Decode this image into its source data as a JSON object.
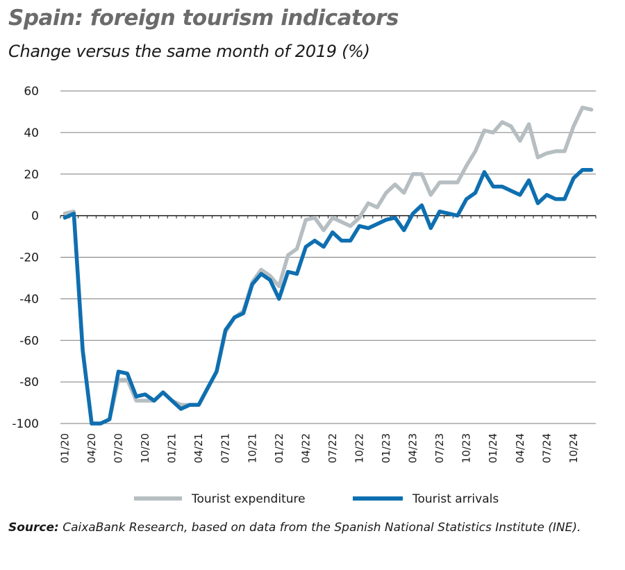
{
  "title": "Spain: foreign tourism indicators",
  "subtitle": "Change versus the same month of 2019 (%)",
  "source_label": "Source:",
  "source_text": "CaixaBank Research, based on data from the Spanish National Statistics Institute (INE).",
  "colors": {
    "expenditure": "#b6bec2",
    "arrivals": "#0e6fb0",
    "grid": "#7a7a7a",
    "zero_line": "#1a1a1a"
  },
  "chart_data": {
    "type": "line",
    "title": "Spain: foreign tourism indicators",
    "subtitle": "Change versus the same month of 2019 (%)",
    "xlabel": "",
    "ylabel": "",
    "ylim": [
      -100,
      60
    ],
    "yticks": [
      60,
      40,
      20,
      0,
      -20,
      -40,
      -60,
      -80,
      -100
    ],
    "xtick_labels": [
      "01/20",
      "04/20",
      "07/20",
      "10/20",
      "01/21",
      "04/21",
      "07/21",
      "10/21",
      "01/22",
      "04/22",
      "07/22",
      "10/22",
      "01/23",
      "04/23",
      "07/23",
      "10/23",
      "01/24",
      "04/24",
      "07/24",
      "10/24"
    ],
    "x": [
      "01/20",
      "02/20",
      "03/20",
      "04/20",
      "05/20",
      "06/20",
      "07/20",
      "08/20",
      "09/20",
      "10/20",
      "11/20",
      "12/20",
      "01/21",
      "02/21",
      "03/21",
      "04/21",
      "05/21",
      "06/21",
      "07/21",
      "08/21",
      "09/21",
      "10/21",
      "11/21",
      "12/21",
      "01/22",
      "02/22",
      "03/22",
      "04/22",
      "05/22",
      "06/22",
      "07/22",
      "08/22",
      "09/22",
      "10/22",
      "11/22",
      "12/22",
      "01/23",
      "02/23",
      "03/23",
      "04/23",
      "05/23",
      "06/23",
      "07/23",
      "08/23",
      "09/23",
      "10/23",
      "11/23",
      "12/23",
      "01/24",
      "02/24",
      "03/24",
      "04/24",
      "05/24",
      "06/24",
      "07/24",
      "08/24",
      "09/24",
      "10/24",
      "11/24",
      "12/24"
    ],
    "grid": true,
    "legend_position": "bottom",
    "series": [
      {
        "name": "Tourist expenditure",
        "color": "#b6bec2",
        "values": [
          1,
          2,
          -64,
          -100,
          -100,
          -98,
          -79,
          -79,
          -89,
          -89,
          -89,
          -85,
          -89,
          -91,
          -91,
          -91,
          -83,
          -75,
          -56,
          -49,
          -46,
          -32,
          -26,
          -29,
          -34,
          -19,
          -16,
          -2,
          -1,
          -7,
          -1,
          -3,
          -5,
          -1,
          6,
          4,
          11,
          15,
          11,
          20,
          20,
          10,
          16,
          16,
          16,
          24,
          31,
          41,
          40,
          45,
          43,
          36,
          44,
          28,
          30,
          31,
          31,
          43,
          52,
          51
        ]
      },
      {
        "name": "Tourist arrivals",
        "color": "#0e6fb0",
        "values": [
          -1,
          1,
          -65,
          -100,
          -100,
          -98,
          -75,
          -76,
          -87,
          -86,
          -89,
          -85,
          -89,
          -93,
          -91,
          -91,
          -83,
          -75,
          -55,
          -49,
          -47,
          -33,
          -28,
          -31,
          -40,
          -27,
          -28,
          -15,
          -12,
          -15,
          -8,
          -12,
          -12,
          -5,
          -6,
          -4,
          -2,
          -1,
          -7,
          1,
          5,
          -6,
          2,
          1,
          0,
          8,
          11,
          21,
          14,
          14,
          12,
          10,
          17,
          6,
          10,
          8,
          8,
          18,
          22,
          22
        ]
      }
    ]
  }
}
